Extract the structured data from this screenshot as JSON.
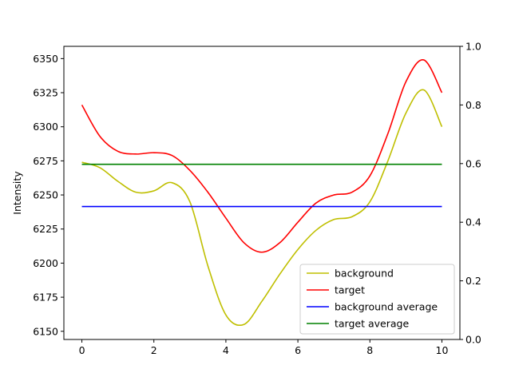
{
  "chart_data": {
    "type": "line",
    "title": "",
    "xlabel": "",
    "ylabel": "Intensity",
    "xlim": [
      -0.5,
      10.5
    ],
    "ylim": [
      6144,
      6359
    ],
    "y2lim": [
      0,
      1
    ],
    "x_ticks": [
      0,
      2,
      4,
      6,
      8,
      10
    ],
    "y_ticks": [
      6150,
      6175,
      6200,
      6225,
      6250,
      6275,
      6300,
      6325,
      6350
    ],
    "y2_ticks": [
      0.0,
      0.2,
      0.4,
      0.6,
      0.8,
      1.0
    ],
    "grid": false,
    "legend_position": "bottom-right",
    "series": [
      {
        "name": "background",
        "color": "#bfbf00",
        "x": [
          0,
          0.5,
          1,
          1.5,
          2,
          2.5,
          3,
          3.5,
          4,
          4.5,
          5,
          5.5,
          6,
          6.5,
          7,
          7.5,
          8,
          8.5,
          9,
          9.5,
          10
        ],
        "y": [
          6274,
          6270,
          6260,
          6252,
          6253,
          6259,
          6245,
          6198,
          6162,
          6155,
          6172,
          6192,
          6210,
          6224,
          6232,
          6234,
          6245,
          6275,
          6310,
          6327,
          6300
        ]
      },
      {
        "name": "target",
        "color": "#ff0000",
        "x": [
          0,
          0.5,
          1,
          1.5,
          2,
          2.5,
          3,
          3.5,
          4,
          4.5,
          5,
          5.5,
          6,
          6.5,
          7,
          7.5,
          8,
          8.5,
          9,
          9.5,
          10
        ],
        "y": [
          6316,
          6293,
          6282,
          6280,
          6281,
          6279,
          6268,
          6252,
          6233,
          6215,
          6208,
          6215,
          6230,
          6244,
          6250,
          6252,
          6264,
          6295,
          6333,
          6349,
          6325
        ]
      },
      {
        "name": "background average",
        "color": "#0000ff",
        "x": [
          0,
          10
        ],
        "y": [
          6241.5,
          6241.5
        ]
      },
      {
        "name": "target average",
        "color": "#008000",
        "x": [
          0,
          10
        ],
        "y": [
          6272.5,
          6272.5
        ]
      }
    ]
  }
}
